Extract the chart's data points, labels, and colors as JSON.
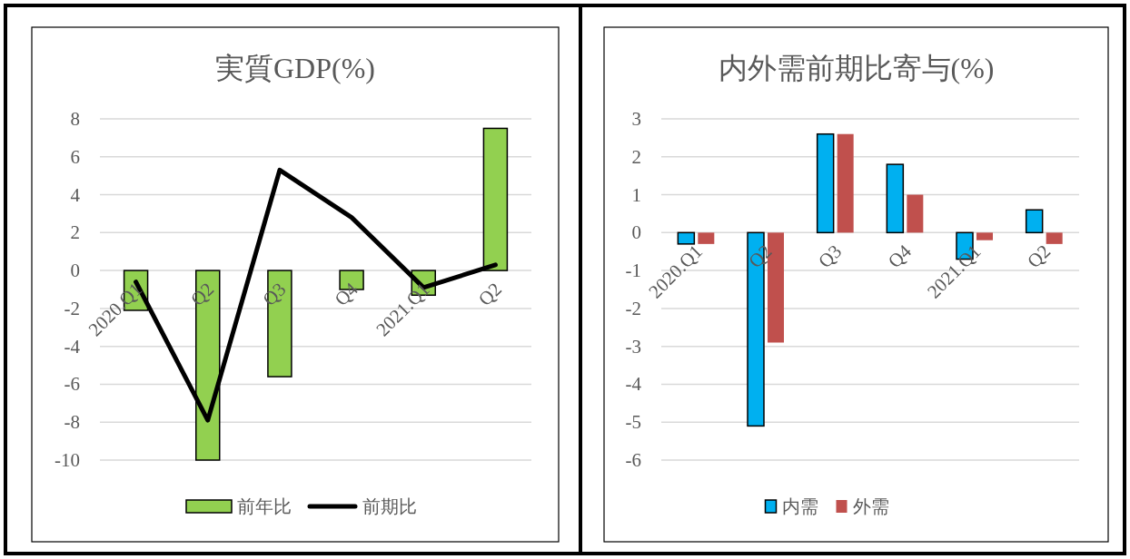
{
  "chart_data": [
    {
      "type": "bar",
      "title": "実質GDP(%)",
      "categories": [
        "2020.Q1",
        "Q2",
        "Q3",
        "Q4",
        "2021.Q1",
        "Q2"
      ],
      "series": [
        {
          "name": "前年比",
          "color": "#92d050",
          "values": [
            -2.1,
            -10.0,
            -5.6,
            -1.0,
            -1.3,
            7.5
          ]
        },
        {
          "name": "前期比",
          "type": "line",
          "color": "#000000",
          "values": [
            -0.6,
            -7.9,
            5.3,
            2.8,
            -0.9,
            0.3
          ]
        }
      ],
      "ylim": [
        -10,
        8
      ],
      "yticks": [
        -10,
        -8,
        -6,
        -4,
        -2,
        0,
        2,
        4,
        6,
        8
      ],
      "grid": "y",
      "legend": "bottom"
    },
    {
      "type": "bar",
      "title": "内外需前期比寄与(%)",
      "categories": [
        "2020.Q1",
        "Q2",
        "Q3",
        "Q4",
        "2021.Q1",
        "Q2"
      ],
      "series": [
        {
          "name": "内需",
          "color": "#00b0f0",
          "values": [
            -0.3,
            -5.1,
            2.6,
            1.8,
            -0.7,
            0.6
          ]
        },
        {
          "name": "外需",
          "color": "#c0504d",
          "values": [
            -0.3,
            -2.9,
            2.6,
            1.0,
            -0.2,
            -0.3
          ]
        }
      ],
      "ylim": [
        -6,
        3
      ],
      "yticks": [
        -6,
        -5,
        -4,
        -3,
        -2,
        -1,
        0,
        1,
        2,
        3
      ],
      "grid": "y",
      "legend": "bottom"
    }
  ]
}
